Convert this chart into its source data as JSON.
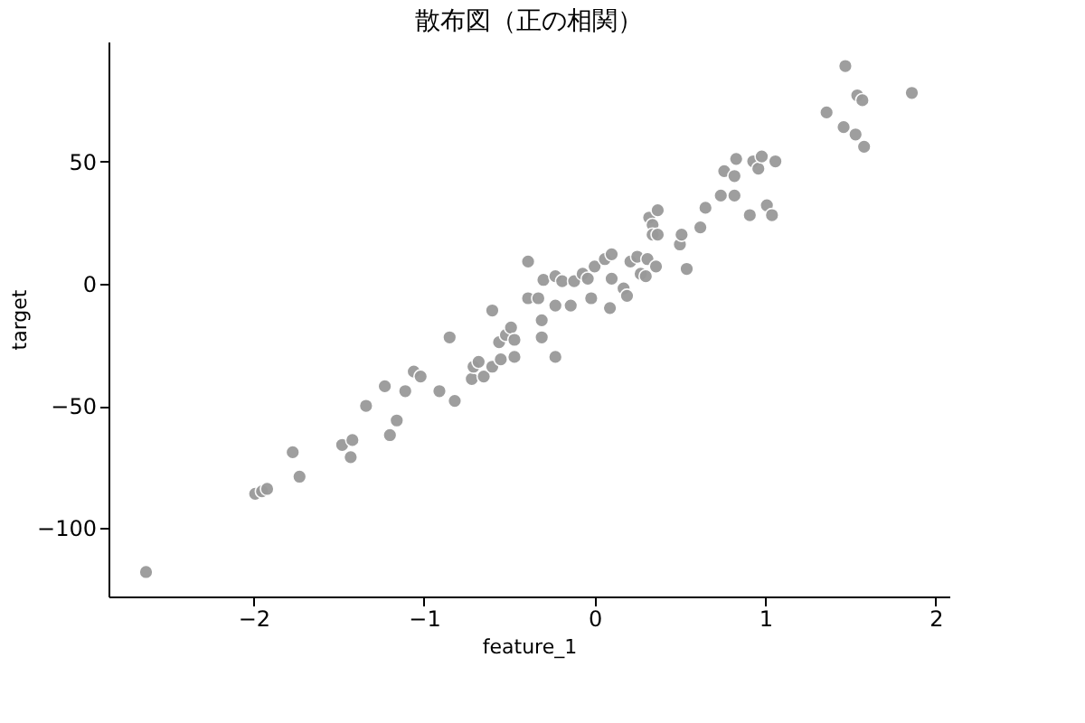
{
  "chart_data": {
    "type": "scatter",
    "title": "散布図（正の相関）",
    "xlabel": "feature_1",
    "ylabel": "target",
    "x": [
      -2.63,
      -1.99,
      -1.95,
      -1.92,
      -1.77,
      -1.73,
      -1.48,
      -1.42,
      -1.43,
      -1.34,
      -1.23,
      -1.2,
      -1.16,
      -1.11,
      -1.06,
      -1.02,
      -0.91,
      -0.85,
      -0.82,
      -0.72,
      -0.71,
      -0.68,
      -0.65,
      -0.6,
      -0.6,
      -0.56,
      -0.55,
      -0.52,
      -0.49,
      -0.47,
      -0.47,
      -0.39,
      -0.39,
      -0.33,
      -0.31,
      -0.31,
      -0.3,
      -0.23,
      -0.23,
      -0.23,
      -0.19,
      -0.14,
      -0.12,
      -0.07,
      -0.04,
      -0.02,
      0.0,
      0.06,
      0.1,
      0.09,
      0.1,
      0.17,
      0.19,
      0.21,
      0.25,
      0.27,
      0.3,
      0.31,
      0.36,
      0.32,
      0.37,
      0.34,
      0.34,
      0.37,
      0.5,
      0.51,
      0.54,
      0.62,
      0.65,
      0.74,
      0.82,
      0.76,
      0.82,
      0.83,
      0.91,
      0.93,
      0.96,
      0.98,
      1.01,
      1.04,
      1.06,
      1.36,
      1.47,
      1.46,
      1.54,
      1.57,
      1.53,
      1.58,
      1.86
    ],
    "values": [
      -118,
      -86,
      -85,
      -84,
      -69,
      -79,
      -66,
      -64,
      -71,
      -50,
      -42,
      -62,
      -56,
      -44,
      -36,
      -38,
      -44,
      -22,
      -48,
      -39,
      -34,
      -32,
      -38,
      -34,
      -11,
      -24,
      -31,
      -21,
      -18,
      -23,
      -30,
      9,
      -6,
      -6,
      -15,
      -22,
      1.5,
      3,
      -9,
      -30,
      1,
      -9,
      1,
      4,
      2,
      -6,
      7,
      10,
      12,
      -10,
      2,
      -2,
      -5,
      9,
      11,
      4,
      3,
      10,
      7,
      27,
      30,
      24,
      20,
      20,
      16,
      20,
      6,
      23,
      31,
      36,
      36,
      46,
      44,
      51,
      28,
      50,
      47,
      52,
      32,
      28,
      50,
      70,
      89,
      64,
      77,
      75,
      61,
      56,
      78
    ],
    "color": "#999999",
    "marker": "circle",
    "grid": false,
    "xlim": [
      -2.85,
      2.08
    ],
    "xticks": [
      -2,
      -1,
      0,
      1,
      2
    ],
    "ylim": [
      -128,
      99
    ],
    "yticks": [
      -100,
      -50,
      0,
      50
    ]
  }
}
